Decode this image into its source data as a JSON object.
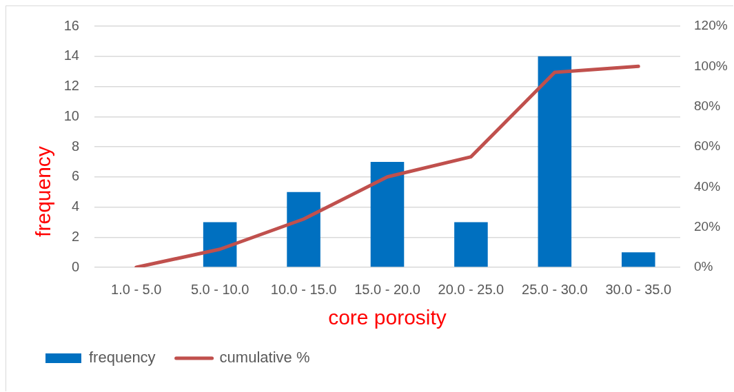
{
  "chart_data": {
    "type": "bar",
    "xlabel": "core porosity",
    "ylabel": "frequency",
    "categories": [
      "1.0 - 5.0",
      "5.0 - 10.0",
      "10.0 - 15.0",
      "15.0 - 20.0",
      "20.0 - 25.0",
      "25.0 - 30.0",
      "30.0 - 35.0"
    ],
    "series": [
      {
        "name": "frequency",
        "color": "#0070c0",
        "values": [
          0,
          3,
          5,
          7,
          3,
          14,
          1
        ]
      },
      {
        "name": "cumulative %",
        "type": "line",
        "axis": "y2",
        "color": "#c0504d",
        "values": [
          0,
          9,
          24,
          45,
          55,
          97,
          100
        ]
      }
    ],
    "ylim": [
      0,
      16
    ],
    "yticks": [
      0,
      2,
      4,
      6,
      8,
      10,
      12,
      14,
      16
    ],
    "y2lim": [
      0,
      120
    ],
    "y2ticks": [
      {
        "value": 0,
        "label": "0%"
      },
      {
        "value": 20,
        "label": "20%"
      },
      {
        "value": 40,
        "label": "40%"
      },
      {
        "value": 60,
        "label": "60%"
      },
      {
        "value": 80,
        "label": "80%"
      },
      {
        "value": 100,
        "label": "100%"
      },
      {
        "value": 120,
        "label": "120%"
      }
    ],
    "grid": "y",
    "legend": "bottom left"
  }
}
